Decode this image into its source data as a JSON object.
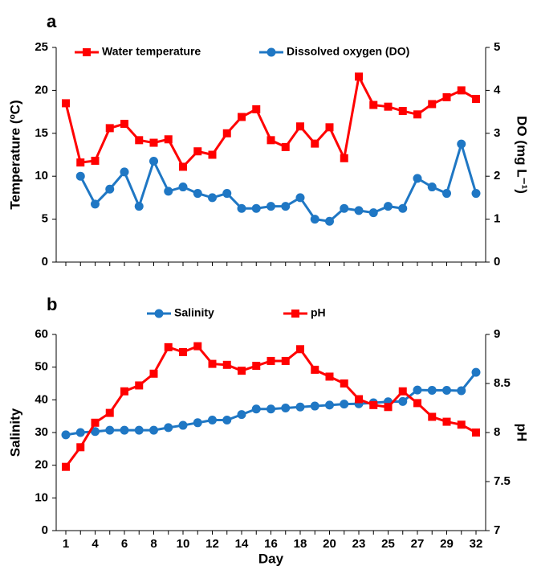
{
  "chart_data": [
    {
      "type": "line",
      "label": "a",
      "ylabel": "Temperature (ºC)",
      "y2label": "DO (mg L⁻¹)",
      "ylim": [
        0,
        25
      ],
      "yticks": [
        0,
        5,
        10,
        15,
        20,
        25
      ],
      "y2lim": [
        0,
        5
      ],
      "y2ticks": [
        0,
        1,
        2,
        3,
        4,
        5
      ],
      "legend": "top",
      "series": [
        {
          "name": "Water temperature",
          "color": "#ff0000",
          "marker": "square",
          "values": [
            18.5,
            11.6,
            11.8,
            15.6,
            16.1,
            14.2,
            13.9,
            14.3,
            11.1,
            12.9,
            12.5,
            15.0,
            16.9,
            17.8,
            14.2,
            13.4,
            15.8,
            13.8,
            15.7,
            12.1,
            21.6,
            18.3,
            18.1,
            17.6,
            17.2,
            18.4,
            19.2,
            20.0,
            19.0
          ]
        },
        {
          "name": "Dissolved oxygen (DO)",
          "color": "#1f77c4",
          "marker": "circle",
          "axis": "y2",
          "values": [
            null,
            2.0,
            1.35,
            1.7,
            2.1,
            1.3,
            2.35,
            1.65,
            1.75,
            1.6,
            1.5,
            1.6,
            1.25,
            1.25,
            1.3,
            1.3,
            1.5,
            1.0,
            0.95,
            1.25,
            1.2,
            1.15,
            1.3,
            1.25,
            1.95,
            1.75,
            1.6,
            2.75,
            1.6
          ]
        }
      ]
    },
    {
      "type": "line",
      "label": "b",
      "xlabel": "Day",
      "ylabel": "Salinity",
      "y2label": "pH",
      "categories": [
        "1",
        null,
        "4",
        null,
        "6",
        null,
        "8",
        null,
        "10",
        null,
        "12",
        null,
        "14",
        null,
        "16",
        null,
        "18",
        null,
        "20",
        null,
        "23",
        null,
        "25",
        null,
        "27",
        null,
        "29",
        null,
        "32"
      ],
      "ylim": [
        0,
        60
      ],
      "yticks": [
        0,
        10,
        20,
        30,
        40,
        50,
        60
      ],
      "y2lim": [
        7,
        9
      ],
      "y2ticks": [
        7,
        7.5,
        8,
        8.5,
        9
      ],
      "legend": "above",
      "series": [
        {
          "name": "Salinity",
          "color": "#1f77c4",
          "marker": "circle",
          "values": [
            29.3,
            30.0,
            30.3,
            30.7,
            30.7,
            30.7,
            30.7,
            31.5,
            32.2,
            33.0,
            33.8,
            33.8,
            35.5,
            37.2,
            37.2,
            37.5,
            37.8,
            38.1,
            38.4,
            38.7,
            38.8,
            39.1,
            39.4,
            39.5,
            43.0,
            42.9,
            42.9,
            42.8,
            48.4
          ]
        },
        {
          "name": "pH",
          "color": "#ff0000",
          "marker": "square",
          "axis": "y2",
          "values": [
            7.65,
            7.85,
            8.1,
            8.2,
            8.42,
            8.48,
            8.6,
            8.87,
            8.82,
            8.88,
            8.7,
            8.69,
            8.63,
            8.68,
            8.73,
            8.73,
            8.85,
            8.64,
            8.57,
            8.5,
            8.34,
            8.28,
            8.26,
            8.42,
            8.3,
            8.16,
            8.11,
            8.08,
            8.0
          ]
        }
      ]
    }
  ]
}
